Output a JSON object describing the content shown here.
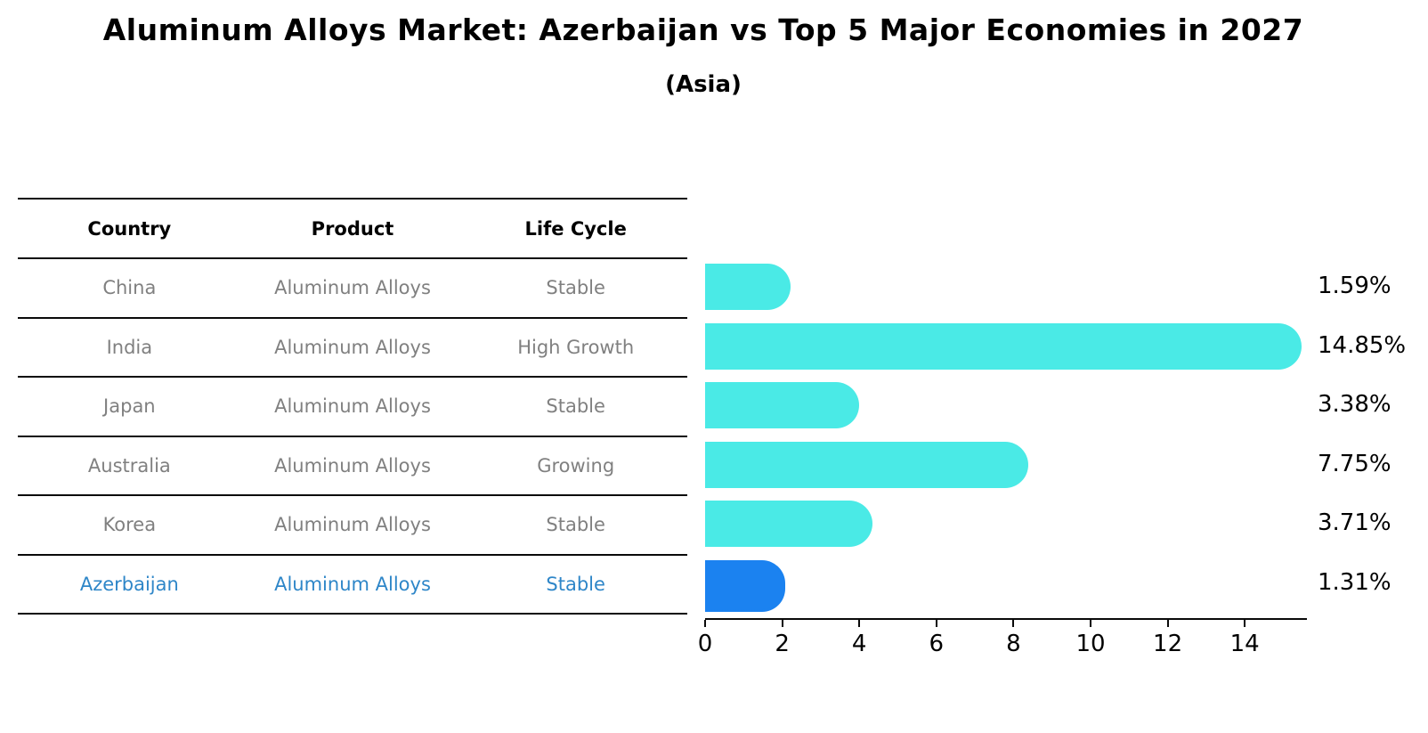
{
  "title": "Aluminum Alloys Market: Azerbaijan vs Top 5 Major Economies in 2027",
  "subtitle": "(Asia)",
  "table": {
    "headers": [
      "Country",
      "Product",
      "Life Cycle"
    ],
    "rows": [
      {
        "country": "China",
        "product": "Aluminum Alloys",
        "life_cycle": "Stable",
        "highlight": false
      },
      {
        "country": "India",
        "product": "Aluminum Alloys",
        "life_cycle": "High Growth",
        "highlight": false
      },
      {
        "country": "Japan",
        "product": "Aluminum Alloys",
        "life_cycle": "Stable",
        "highlight": false
      },
      {
        "country": "Australia",
        "product": "Aluminum Alloys",
        "life_cycle": "Growing",
        "highlight": false
      },
      {
        "country": "Korea",
        "product": "Aluminum Alloys",
        "life_cycle": "Stable",
        "highlight": false
      },
      {
        "country": "Azerbaijan",
        "product": "Aluminum Alloys",
        "life_cycle": "Stable",
        "highlight": true
      }
    ]
  },
  "chart_data": {
    "type": "bar",
    "orientation": "horizontal",
    "title": "Aluminum Alloys Market: Azerbaijan vs Top 5 Major Economies in 2027",
    "subtitle": "(Asia)",
    "categories": [
      "China",
      "India",
      "Japan",
      "Australia",
      "Korea",
      "Azerbaijan"
    ],
    "values": [
      1.59,
      14.85,
      3.38,
      7.75,
      3.71,
      1.31
    ],
    "value_labels": [
      "1.59%",
      "14.85%",
      "3.38%",
      "7.75%",
      "3.71%",
      "1.31%"
    ],
    "xticks": [
      0,
      2,
      4,
      6,
      8,
      10,
      12,
      14
    ],
    "xlim": [
      0,
      15.6
    ],
    "grid": false,
    "legend": false,
    "highlight_index": 5
  },
  "colors": {
    "bar": "#4AEAE6",
    "highlight_bar": "#1B82F0",
    "highlight_text": "#2e86c8",
    "row_text": "#808080",
    "heading_text": "#000000",
    "axis": "#0a0a0a"
  }
}
